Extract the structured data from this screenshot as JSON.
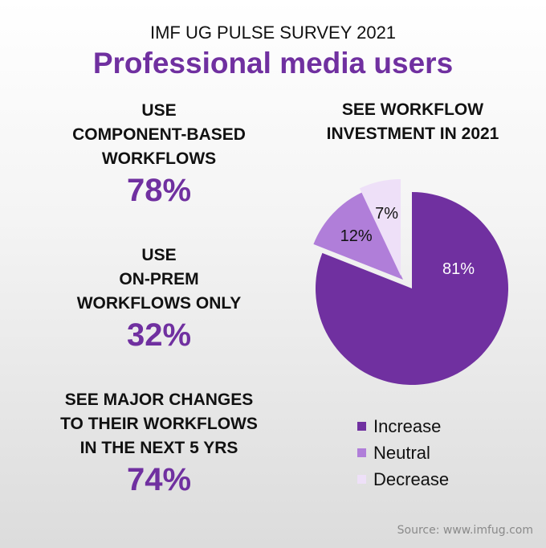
{
  "header": {
    "survey_title": "IMF UG PULSE SURVEY 2021",
    "main_title": "Professional media users"
  },
  "stats": [
    {
      "label": "USE\nCOMPONENT-BASED\nWORKFLOWS",
      "value": "78%"
    },
    {
      "label": "USE\nON-PREM\nWORKFLOWS ONLY",
      "value": "32%"
    },
    {
      "label": "SEE MAJOR CHANGES\nTO THEIR WORKFLOWS\nIN THE NEXT 5 YRS",
      "value": "74%"
    }
  ],
  "chart_data": {
    "type": "pie",
    "title": "SEE WORKFLOW\nINVESTMENT IN 2021",
    "categories": [
      "Increase",
      "Neutral",
      "Decrease"
    ],
    "values": [
      81,
      12,
      7
    ],
    "labels": [
      "81%",
      "12%",
      "7%"
    ],
    "colors": [
      "#7030a0",
      "#b07ed9",
      "#eee0f8"
    ],
    "label_colors": [
      "#ffffff",
      "#111111",
      "#111111"
    ],
    "exploded": [
      "Neutral",
      "Decrease"
    ],
    "legend_position": "bottom-right"
  },
  "footer": {
    "source": "Source: www.imfug.com"
  }
}
